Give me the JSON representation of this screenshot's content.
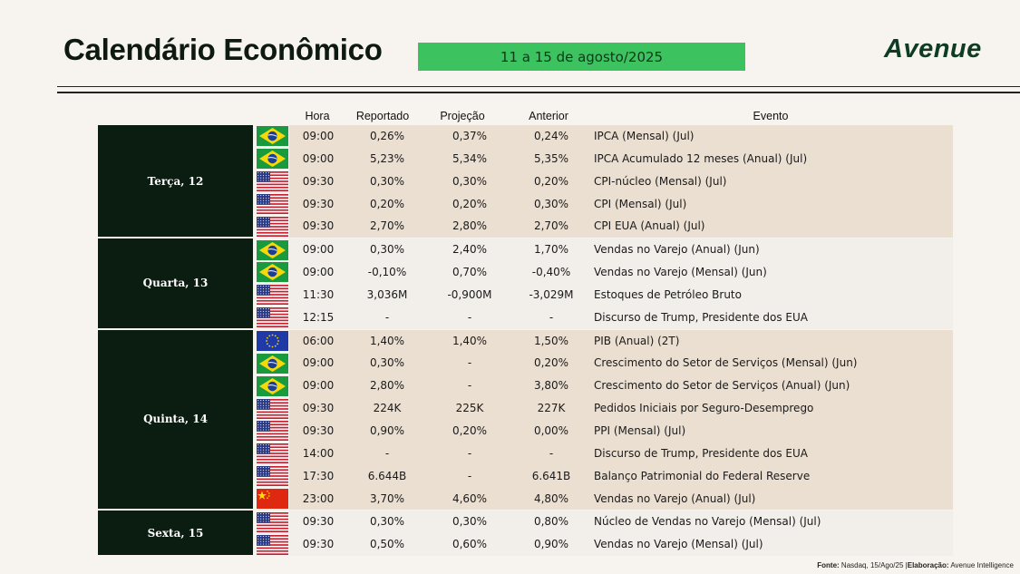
{
  "title": "Calendário Econômico",
  "date_range": "11 a 15 de agosto/2025",
  "logo": "Avenue",
  "columns": {
    "hora": "Hora",
    "reportado": "Reportado",
    "projecao": "Projeção",
    "anterior": "Anterior",
    "evento": "Evento"
  },
  "groups": [
    {
      "day": "Terça, 12",
      "bg": "tan",
      "rows": [
        {
          "flag": "br-flag-icon",
          "hora": "09:00",
          "reportado": "0,26%",
          "projecao": "0,37%",
          "anterior": "0,24%",
          "evento": "IPCA (Mensal) (Jul)"
        },
        {
          "flag": "br-flag-icon",
          "hora": "09:00",
          "reportado": "5,23%",
          "projecao": "5,34%",
          "anterior": "5,35%",
          "evento": "IPCA Acumulado 12 meses (Anual) (Jul)"
        },
        {
          "flag": "us-flag-icon",
          "hora": "09:30",
          "reportado": "0,30%",
          "projecao": "0,30%",
          "anterior": "0,20%",
          "evento": "CPI-núcleo (Mensal) (Jul)"
        },
        {
          "flag": "us-flag-icon",
          "hora": "09:30",
          "reportado": "0,20%",
          "projecao": "0,20%",
          "anterior": "0,30%",
          "evento": "CPI (Mensal) (Jul)"
        },
        {
          "flag": "us-flag-icon",
          "hora": "09:30",
          "reportado": "2,70%",
          "projecao": "2,80%",
          "anterior": "2,70%",
          "evento": "CPI EUA (Anual) (Jul)"
        }
      ]
    },
    {
      "day": "Quarta, 13",
      "bg": "light",
      "rows": [
        {
          "flag": "br-flag-icon",
          "hora": "09:00",
          "reportado": "0,30%",
          "projecao": "2,40%",
          "anterior": "1,70%",
          "evento": "Vendas no Varejo (Anual) (Jun)"
        },
        {
          "flag": "br-flag-icon",
          "hora": "09:00",
          "reportado": "-0,10%",
          "projecao": "0,70%",
          "anterior": "-0,40%",
          "evento": "Vendas no Varejo (Mensal) (Jun)"
        },
        {
          "flag": "us-flag-icon",
          "hora": "11:30",
          "reportado": "3,036M",
          "projecao": "-0,900M",
          "anterior": "-3,029M",
          "evento": "Estoques de Petróleo Bruto"
        },
        {
          "flag": "us-flag-icon",
          "hora": "12:15",
          "reportado": "-",
          "projecao": "-",
          "anterior": "-",
          "evento": "Discurso de Trump, Presidente dos EUA"
        }
      ]
    },
    {
      "day": "Quinta, 14",
      "bg": "tan",
      "rows": [
        {
          "flag": "eu-flag-icon",
          "hora": "06:00",
          "reportado": "1,40%",
          "projecao": "1,40%",
          "anterior": "1,50%",
          "evento": "PIB (Anual) (2T)"
        },
        {
          "flag": "br-flag-icon",
          "hora": "09:00",
          "reportado": "0,30%",
          "projecao": "-",
          "anterior": "0,20%",
          "evento": "Crescimento do Setor de Serviços (Mensal) (Jun)"
        },
        {
          "flag": "br-flag-icon",
          "hora": "09:00",
          "reportado": "2,80%",
          "projecao": "-",
          "anterior": "3,80%",
          "evento": "Crescimento do Setor de Serviços (Anual) (Jun)"
        },
        {
          "flag": "us-flag-icon",
          "hora": "09:30",
          "reportado": "224K",
          "projecao": "225K",
          "anterior": "227K",
          "evento": "Pedidos Iniciais por Seguro-Desemprego"
        },
        {
          "flag": "us-flag-icon",
          "hora": "09:30",
          "reportado": "0,90%",
          "projecao": "0,20%",
          "anterior": "0,00%",
          "evento": "PPI (Mensal) (Jul)"
        },
        {
          "flag": "us-flag-icon",
          "hora": "14:00",
          "reportado": "-",
          "projecao": "-",
          "anterior": "-",
          "evento": "Discurso de Trump, Presidente dos EUA"
        },
        {
          "flag": "us-flag-icon",
          "hora": "17:30",
          "reportado": "6.644B",
          "projecao": "-",
          "anterior": "6.641B",
          "evento": "Balanço Patrimonial do Federal Reserve"
        },
        {
          "flag": "cn-flag-icon",
          "hora": "23:00",
          "reportado": "3,70%",
          "projecao": "4,60%",
          "anterior": "4,80%",
          "evento": "Vendas no Varejo (Anual) (Jul)"
        }
      ]
    },
    {
      "day": "Sexta, 15",
      "bg": "light",
      "rows": [
        {
          "flag": "us-flag-icon",
          "hora": "09:30",
          "reportado": "0,30%",
          "projecao": "0,30%",
          "anterior": "0,80%",
          "evento": "Núcleo de Vendas no Varejo (Mensal) (Jul)"
        },
        {
          "flag": "us-flag-icon",
          "hora": "09:30",
          "reportado": "0,50%",
          "projecao": "0,60%",
          "anterior": "0,90%",
          "evento": "Vendas no Varejo (Mensal) (Jul)"
        }
      ]
    }
  ],
  "footer": {
    "source_label": "Fonte:",
    "source": "Nasdaq, 15/Ago/25",
    "sep": "|",
    "credit_label": "Elaboração:",
    "credit": "Avenue Intelligence"
  }
}
